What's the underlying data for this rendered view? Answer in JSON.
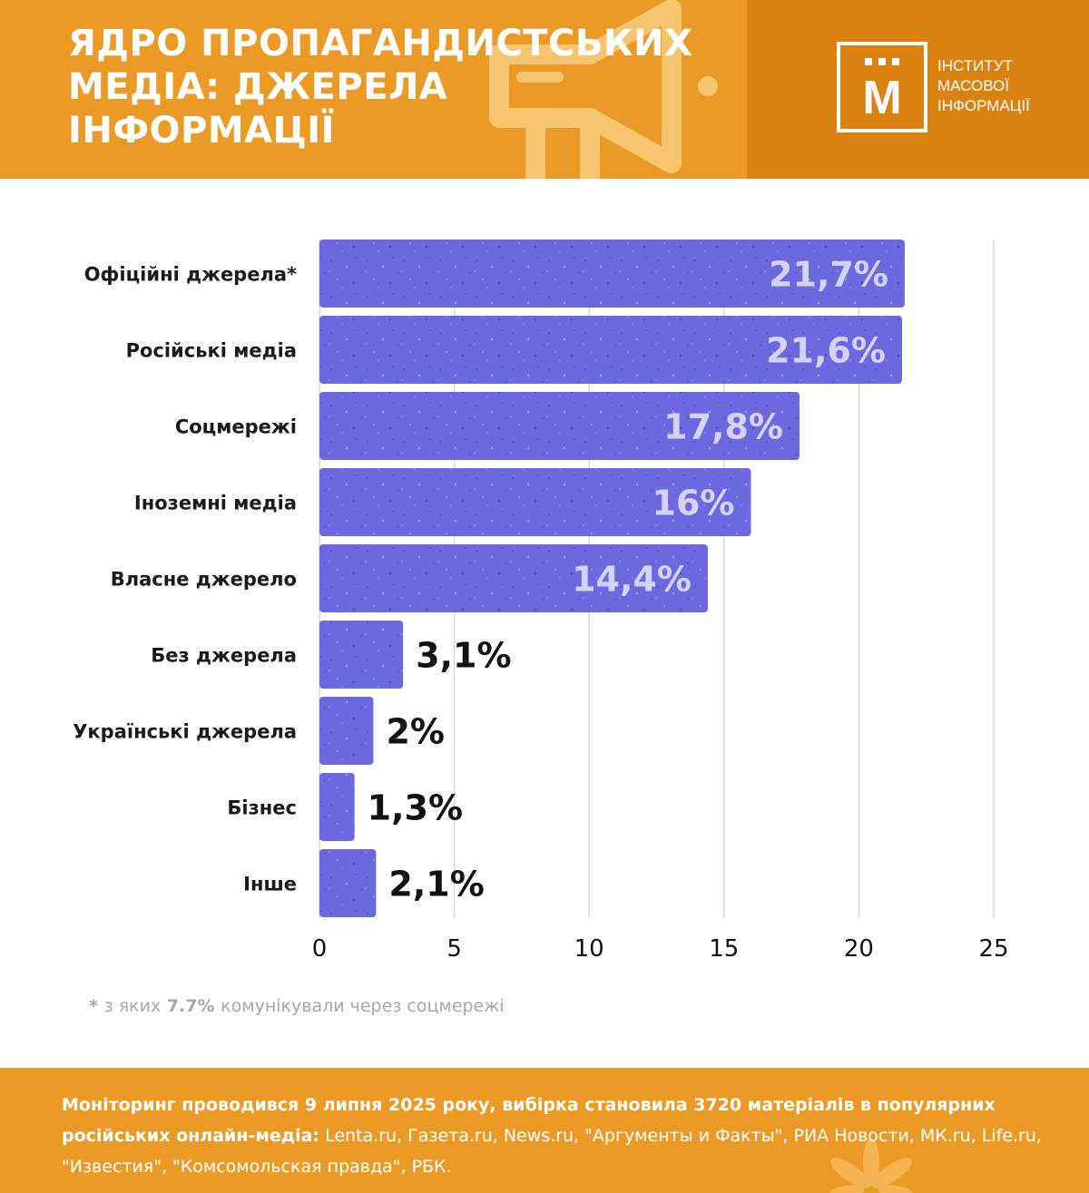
{
  "header": {
    "title_lines": [
      "ЯДРО ПРОПАГАНДИСТСЬКИХ",
      "МЕДІА: ДЖЕРЕЛА",
      "ІНФОРМАЦІЇ"
    ],
    "logo_letter": "М",
    "logo_text_lines": [
      "ІНСТИТУТ",
      "МАСОВОЇ",
      "ІНФОРМАЦІЇ"
    ]
  },
  "colors": {
    "header_bg": "#ec9a26",
    "header_dark": "#d9820f",
    "bar": "#6b69e0",
    "bar_label_light": "#d4d2f7",
    "grid": "#d8d8d8"
  },
  "chart_data": {
    "type": "bar",
    "orientation": "horizontal",
    "categories": [
      "Офіційні джерела*",
      "Російські медіа",
      "Соцмережі",
      "Іноземні медіа",
      "Власне джерело",
      "Без джерела",
      "Українські джерела",
      "Бізнес",
      "Інше"
    ],
    "values": [
      21.7,
      21.6,
      17.8,
      16,
      14.4,
      3.1,
      2,
      1.3,
      2.1
    ],
    "data_labels": [
      "21,7%",
      "21,6%",
      "17,8%",
      "16%",
      "14,4%",
      "3,1%",
      "2%",
      "1,3%",
      "2,1%"
    ],
    "x_ticks": [
      "0",
      "5",
      "10",
      "15",
      "20",
      "25"
    ],
    "xlim": [
      0,
      25
    ],
    "grid": "vertical"
  },
  "footnote": {
    "star": "*",
    "pre": "з яких",
    "highlight": "7.7%",
    "post": "комунікували через соцмережі"
  },
  "footer": {
    "bold": "Моніторинг проводився 9 липня 2025 року, вибірка становила 3720 матеріалів в популярних російських онлайн-медіа:",
    "normal": "Lenta.ru, Газета.ru, News.ru, \"Аргументы и Факты\", РИА Новости, МК.ru, Life.ru, \"Известия\", \"Комсомольская правда\", РБК."
  }
}
